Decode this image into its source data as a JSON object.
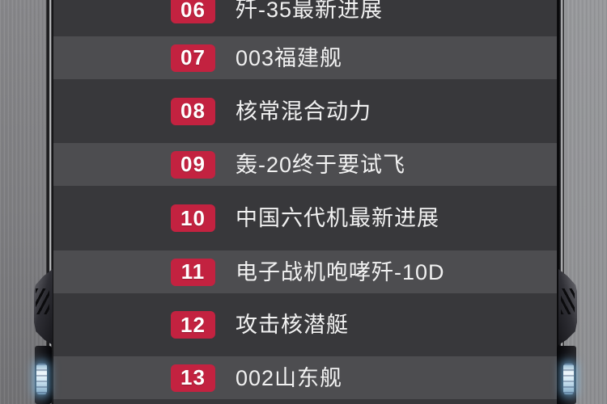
{
  "list": {
    "items": [
      {
        "num": "06",
        "title": "歼-35最新进展"
      },
      {
        "num": "07",
        "title": "003福建舰"
      },
      {
        "num": "08",
        "title": "核常混合动力"
      },
      {
        "num": "09",
        "title": "轰-20终于要试飞"
      },
      {
        "num": "10",
        "title": "中国六代机最新进展"
      },
      {
        "num": "11",
        "title": "电子战机咆哮歼-10D"
      },
      {
        "num": "12",
        "title": "攻击核潜艇"
      },
      {
        "num": "13",
        "title": "002山东舰"
      }
    ]
  },
  "colors": {
    "badge_red": "#c32240",
    "row_dark": "#38383b",
    "row_light": "#4d4d50",
    "item_text": "#f1f1f1",
    "glow_blue": "#cfe6f4"
  }
}
